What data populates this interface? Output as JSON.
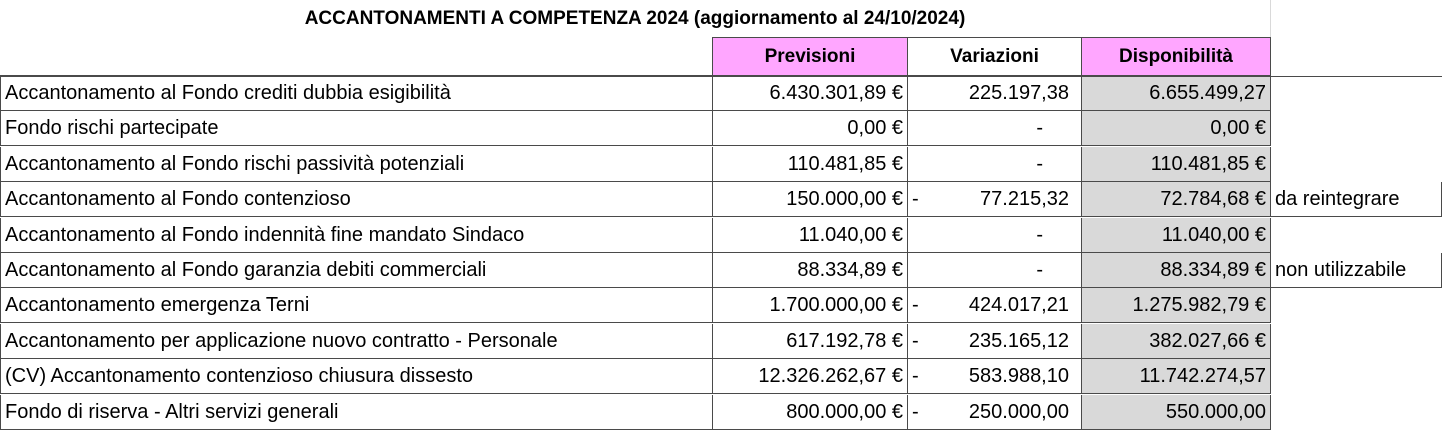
{
  "title": "ACCANTONAMENTI A COMPETENZA 2024 (aggiornamento al 24/10/2024)",
  "headers": {
    "previsioni": "Previsioni",
    "variazioni": "Variazioni",
    "disponibilita": "Disponibilità"
  },
  "colors": {
    "header_bg": "#ffa6ff",
    "disponibilita_bg": "#d9d9d9",
    "border": "#4a4a4a"
  },
  "rows": [
    {
      "label": "Accantonamento al Fondo crediti dubbia esigibilità",
      "previsioni": "6.430.301,89 €",
      "var_sign": "",
      "variazioni": "225.197,38",
      "disponibilita": "6.655.499,27",
      "note": ""
    },
    {
      "label": "Fondo rischi partecipate",
      "previsioni": "0,00 €",
      "var_sign": "",
      "variazioni": "-",
      "disponibilita": "0,00 €",
      "note": ""
    },
    {
      "label": "Accantonamento al Fondo rischi passività potenziali",
      "previsioni": "110.481,85 €",
      "var_sign": "",
      "variazioni": "-",
      "disponibilita": "110.481,85 €",
      "note": ""
    },
    {
      "label": "Accantonamento al Fondo contenzioso",
      "previsioni": "150.000,00 €",
      "var_sign": "-",
      "variazioni": "77.215,32",
      "disponibilita": "72.784,68 €",
      "note": "da reintegrare"
    },
    {
      "label": "Accantonamento al Fondo indennità fine mandato Sindaco",
      "previsioni": "11.040,00 €",
      "var_sign": "",
      "variazioni": "-",
      "disponibilita": "11.040,00 €",
      "note": ""
    },
    {
      "label": "Accantonamento al Fondo garanzia debiti commerciali",
      "previsioni": "88.334,89 €",
      "var_sign": "",
      "variazioni": "-",
      "disponibilita": "88.334,89 €",
      "note": "non utilizzabile"
    },
    {
      "label": "Accantonamento emergenza Terni",
      "previsioni": "1.700.000,00 €",
      "var_sign": "-",
      "variazioni": "424.017,21",
      "disponibilita": "1.275.982,79 €",
      "note": ""
    },
    {
      "label": "Accantonamento per applicazione nuovo contratto - Personale",
      "previsioni": "617.192,78 €",
      "var_sign": "-",
      "variazioni": "235.165,12",
      "disponibilita": "382.027,66 €",
      "note": ""
    },
    {
      "label": "(CV) Accantonamento contenzioso chiusura dissesto",
      "previsioni": "12.326.262,67 €",
      "var_sign": "-",
      "variazioni": "583.988,10",
      "disponibilita": "11.742.274,57",
      "note": ""
    },
    {
      "label": "Fondo di riserva - Altri servizi generali",
      "previsioni": "800.000,00 €",
      "var_sign": "-",
      "variazioni": "250.000,00",
      "disponibilita": "550.000,00",
      "note": ""
    }
  ]
}
